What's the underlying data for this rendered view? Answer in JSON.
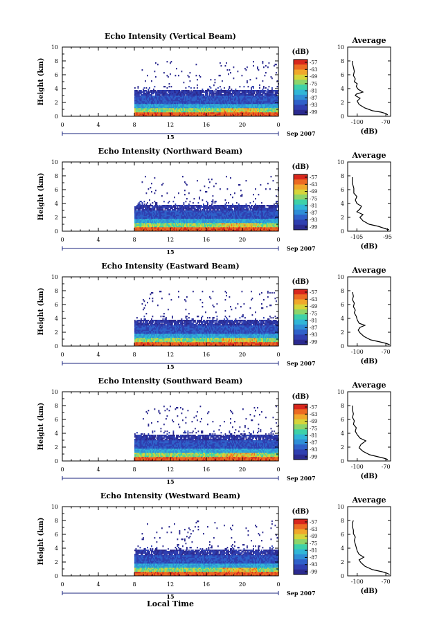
{
  "x_axis_label": "Local Time",
  "chart_data": [
    {
      "type": "heatmap",
      "title": "Echo Intensity (Vertical Beam)",
      "ylabel": "Height (km)",
      "ylim": [
        0,
        10
      ],
      "yticks": [
        0,
        2,
        4,
        6,
        8,
        10
      ],
      "xlim": [
        0,
        24
      ],
      "xticks": [
        "0",
        "4",
        "8",
        "12",
        "16",
        "20",
        "0"
      ],
      "date_marker": "15",
      "date_label": "Sep 2007",
      "colorbar": {
        "label": "(dB)",
        "ticks": [
          "-57",
          "-63",
          "-69",
          "-75",
          "-81",
          "-87",
          "-93",
          "-99"
        ]
      },
      "data_extent": {
        "x_start": 8,
        "x_end": 24,
        "echo_top_km": 8
      },
      "profile": {
        "title": "Average",
        "xlabel": "(dB)",
        "xticks": [
          "-100",
          "-70"
        ],
        "xlim": [
          -110,
          -65
        ],
        "ylim": [
          0,
          10
        ],
        "yticks": [
          0,
          2,
          4,
          6,
          8,
          10
        ],
        "points": [
          [
            -68,
            0.2
          ],
          [
            -70,
            0.4
          ],
          [
            -75,
            0.6
          ],
          [
            -84,
            0.8
          ],
          [
            -92,
            1.2
          ],
          [
            -98,
            1.7
          ],
          [
            -100,
            2.2
          ],
          [
            -97,
            2.6
          ],
          [
            -102,
            3.0
          ],
          [
            -101,
            3.2
          ],
          [
            -94,
            3.5
          ],
          [
            -99,
            3.9
          ],
          [
            -101,
            4.3
          ],
          [
            -100,
            4.7
          ],
          [
            -103,
            5.0
          ],
          [
            -102,
            5.4
          ],
          [
            -104,
            5.9
          ],
          [
            -103,
            6.5
          ],
          [
            -104,
            7.1
          ],
          [
            -105,
            7.6
          ],
          [
            -105,
            8.0
          ]
        ]
      }
    },
    {
      "type": "heatmap",
      "title": "Echo Intensity (Northward Beam)",
      "ylabel": "Height (km)",
      "ylim": [
        0,
        10
      ],
      "yticks": [
        0,
        2,
        4,
        6,
        8,
        10
      ],
      "xlim": [
        0,
        24
      ],
      "xticks": [
        "0",
        "4",
        "8",
        "12",
        "16",
        "20",
        "0"
      ],
      "date_marker": "15",
      "date_label": "Sep 2007",
      "colorbar": {
        "label": "(dB)",
        "ticks": [
          "-57",
          "-63",
          "-69",
          "-75",
          "-81",
          "-87",
          "-93",
          "-99"
        ]
      },
      "data_extent": {
        "x_start": 8,
        "x_end": 24,
        "echo_top_km": 8
      },
      "profile": {
        "title": "Average",
        "xlabel": "(dB)",
        "xticks": [
          "-105",
          "-95"
        ],
        "xlim": [
          -108,
          -94
        ],
        "ylim": [
          0,
          10
        ],
        "yticks": [
          0,
          2,
          4,
          6,
          8,
          10
        ],
        "points": [
          [
            -94.5,
            0.2
          ],
          [
            -96,
            0.4
          ],
          [
            -98,
            0.7
          ],
          [
            -101,
            1.0
          ],
          [
            -103,
            1.5
          ],
          [
            -104,
            2.0
          ],
          [
            -103,
            2.4
          ],
          [
            -105,
            2.8
          ],
          [
            -104,
            3.2
          ],
          [
            -103.5,
            3.6
          ],
          [
            -105,
            4.0
          ],
          [
            -105.5,
            4.5
          ],
          [
            -105,
            5.0
          ],
          [
            -106,
            5.5
          ],
          [
            -106,
            6.2
          ],
          [
            -106.5,
            7.0
          ],
          [
            -106.5,
            7.8
          ]
        ]
      }
    },
    {
      "type": "heatmap",
      "title": "Echo Intensity (Eastward Beam)",
      "ylabel": "Height (km)",
      "ylim": [
        0,
        10
      ],
      "yticks": [
        0,
        2,
        4,
        6,
        8,
        10
      ],
      "xlim": [
        0,
        24
      ],
      "xticks": [
        "0",
        "4",
        "8",
        "12",
        "16",
        "20",
        "0"
      ],
      "date_marker": "15",
      "date_label": "Sep 2007",
      "colorbar": {
        "label": "(dB)",
        "ticks": [
          "-57",
          "-63",
          "-69",
          "-75",
          "-81",
          "-87",
          "-93",
          "-99"
        ]
      },
      "data_extent": {
        "x_start": 8,
        "x_end": 24,
        "echo_top_km": 8
      },
      "profile": {
        "title": "Average",
        "xlabel": "(dB)",
        "xticks": [
          "-100",
          "-70"
        ],
        "xlim": [
          -110,
          -65
        ],
        "ylim": [
          0,
          10
        ],
        "yticks": [
          0,
          2,
          4,
          6,
          8,
          10
        ],
        "points": [
          [
            -66,
            0.2
          ],
          [
            -70,
            0.4
          ],
          [
            -76,
            0.6
          ],
          [
            -86,
            0.9
          ],
          [
            -93,
            1.4
          ],
          [
            -97,
            1.9
          ],
          [
            -99,
            2.3
          ],
          [
            -97,
            2.7
          ],
          [
            -92,
            3.0
          ],
          [
            -98,
            3.3
          ],
          [
            -100,
            3.8
          ],
          [
            -101,
            4.3
          ],
          [
            -103,
            4.8
          ],
          [
            -102,
            5.2
          ],
          [
            -104,
            5.7
          ],
          [
            -103,
            6.2
          ],
          [
            -105,
            6.7
          ],
          [
            -104,
            7.2
          ],
          [
            -105,
            7.8
          ]
        ]
      }
    },
    {
      "type": "heatmap",
      "title": "Echo Intensity (Southward Beam)",
      "ylabel": "Height (km)",
      "ylim": [
        0,
        10
      ],
      "yticks": [
        0,
        2,
        4,
        6,
        8,
        10
      ],
      "xlim": [
        0,
        24
      ],
      "xticks": [
        "0",
        "4",
        "8",
        "12",
        "16",
        "20",
        "0"
      ],
      "date_marker": "15",
      "date_label": "Sep 2007",
      "colorbar": {
        "label": "(dB)",
        "ticks": [
          "-57",
          "-63",
          "-69",
          "-75",
          "-81",
          "-87",
          "-93",
          "-99"
        ]
      },
      "data_extent": {
        "x_start": 8,
        "x_end": 24,
        "echo_top_km": 8
      },
      "profile": {
        "title": "Average",
        "xlabel": "(dB)",
        "xticks": [
          "-100",
          "-70"
        ],
        "xlim": [
          -110,
          -65
        ],
        "ylim": [
          0,
          10
        ],
        "yticks": [
          0,
          2,
          4,
          6,
          8,
          10
        ],
        "points": [
          [
            -68,
            0.2
          ],
          [
            -72,
            0.4
          ],
          [
            -78,
            0.6
          ],
          [
            -87,
            0.9
          ],
          [
            -94,
            1.4
          ],
          [
            -98,
            1.9
          ],
          [
            -96,
            2.4
          ],
          [
            -91,
            2.9
          ],
          [
            -97,
            3.3
          ],
          [
            -100,
            3.8
          ],
          [
            -102,
            4.3
          ],
          [
            -101,
            4.8
          ],
          [
            -104,
            5.3
          ],
          [
            -103,
            5.8
          ],
          [
            -105,
            6.3
          ],
          [
            -104,
            6.8
          ],
          [
            -105,
            7.4
          ],
          [
            -105,
            8.0
          ]
        ]
      }
    },
    {
      "type": "heatmap",
      "title": "Echo Intensity (Westward Beam)",
      "ylabel": "Height (km)",
      "ylim": [
        0,
        10
      ],
      "yticks": [
        0,
        2,
        4,
        6,
        8,
        10
      ],
      "xlim": [
        0,
        24
      ],
      "xticks": [
        "0",
        "4",
        "8",
        "12",
        "16",
        "20",
        "0"
      ],
      "date_marker": "15",
      "date_label": "Sep 2007",
      "colorbar": {
        "label": "(dB)",
        "ticks": [
          "-57",
          "-63",
          "-69",
          "-75",
          "-81",
          "-87",
          "-93",
          "-99"
        ]
      },
      "data_extent": {
        "x_start": 8,
        "x_end": 24,
        "echo_top_km": 8
      },
      "profile": {
        "title": "Average",
        "xlabel": "(dB)",
        "xticks": [
          "-100",
          "-70"
        ],
        "xlim": [
          -110,
          -65
        ],
        "ylim": [
          0,
          10
        ],
        "yticks": [
          0,
          2,
          4,
          6,
          8,
          10
        ],
        "points": [
          [
            -66,
            0.2
          ],
          [
            -69,
            0.4
          ],
          [
            -74,
            0.6
          ],
          [
            -84,
            0.9
          ],
          [
            -92,
            1.4
          ],
          [
            -96,
            1.9
          ],
          [
            -98,
            2.3
          ],
          [
            -93,
            2.7
          ],
          [
            -98,
            3.1
          ],
          [
            -100,
            3.6
          ],
          [
            -101,
            4.1
          ],
          [
            -102,
            4.6
          ],
          [
            -103,
            5.1
          ],
          [
            -102,
            5.6
          ],
          [
            -104,
            6.1
          ],
          [
            -104,
            6.6
          ],
          [
            -105,
            7.1
          ],
          [
            -105,
            7.7
          ],
          [
            -104,
            8.0
          ]
        ]
      }
    }
  ]
}
